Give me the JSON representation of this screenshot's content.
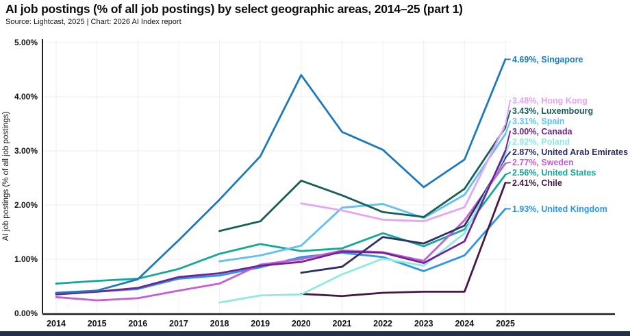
{
  "page": {
    "title": "AI job postings (% of all job postings) by select geographic areas, 2014–25 (part 1)",
    "subtitle": "Source: Lightcast, 2025 | Chart: 2026 AI Index report"
  },
  "colors": {
    "axis": "#1f1f1f",
    "grid": "#f1f1f4",
    "tick_text": "#121212",
    "footer_bar": "#22304a",
    "background": "#ffffff"
  },
  "chart_data": {
    "type": "line",
    "title": "AI job postings (% of all job postings) by select geographic areas, 2014–25 (part 1)",
    "subtitle": "Source: Lightcast, 2025 | Chart: 2026 AI Index report",
    "xlabel": "",
    "ylabel": "AI job postings (% of all job postings)",
    "units": "percent of all job postings",
    "x": [
      2014,
      2015,
      2016,
      2017,
      2018,
      2019,
      2020,
      2021,
      2022,
      2023,
      2024,
      2025
    ],
    "x_tick_labels": [
      "2014",
      "2015",
      "2016",
      "2017",
      "2018",
      "2019",
      "2020",
      "2021",
      "2022",
      "2023",
      "2024",
      "2025"
    ],
    "y_tick_labels": [
      "0.00%",
      "1.00%",
      "2.00%",
      "3.00%",
      "4.00%",
      "5.00%"
    ],
    "ylim": [
      0,
      5
    ],
    "grid": true,
    "legend_position": "right-of-line-endpoints",
    "series": [
      {
        "name": "Singapore",
        "label": "4.69%, Singapore",
        "final_value": 4.69,
        "color": "#1d79bd",
        "values": [
          0.38,
          0.42,
          0.63,
          1.35,
          2.1,
          2.9,
          4.4,
          3.35,
          3.02,
          2.33,
          2.84,
          4.69
        ]
      },
      {
        "name": "Hong Kong",
        "label": "3.48%, Hong Kong",
        "final_value": 3.48,
        "color": "#e3a6f2",
        "values": [
          null,
          null,
          null,
          null,
          null,
          null,
          2.03,
          1.9,
          1.73,
          1.7,
          1.96,
          3.48
        ]
      },
      {
        "name": "Luxembourg",
        "label": "3.43%, Luxembourg",
        "final_value": 3.43,
        "color": "#175d58",
        "values": [
          null,
          null,
          null,
          null,
          1.52,
          1.7,
          2.45,
          2.18,
          1.87,
          1.78,
          2.3,
          3.43
        ]
      },
      {
        "name": "Spain",
        "label": "3.31%, Spain",
        "final_value": 3.31,
        "color": "#5ec1ee",
        "values": [
          null,
          null,
          null,
          null,
          0.96,
          1.07,
          1.25,
          1.95,
          2.02,
          1.76,
          2.19,
          3.31
        ]
      },
      {
        "name": "Canada",
        "label": "3.00%, Canada",
        "final_value": 3.0,
        "color": "#6f2394",
        "values": [
          0.35,
          0.4,
          0.47,
          0.67,
          0.74,
          0.88,
          0.95,
          1.14,
          1.12,
          0.93,
          1.33,
          3.0
        ]
      },
      {
        "name": "Poland",
        "label": "2.92%, Poland",
        "final_value": 2.92,
        "color": "#8deae2",
        "values": [
          null,
          null,
          null,
          null,
          0.2,
          0.33,
          0.35,
          0.72,
          1.01,
          0.88,
          1.48,
          2.92
        ]
      },
      {
        "name": "United Arab Emirates",
        "label": "2.87%, United Arab Emirates",
        "final_value": 2.87,
        "color": "#2c3068",
        "values": [
          null,
          null,
          null,
          null,
          null,
          null,
          0.75,
          0.86,
          1.41,
          1.29,
          1.62,
          2.87
        ]
      },
      {
        "name": "Sweden",
        "label": "2.77%, Sweden",
        "final_value": 2.77,
        "color": "#c45ed4",
        "values": [
          0.3,
          0.24,
          0.28,
          0.42,
          0.55,
          0.9,
          1.0,
          1.16,
          1.13,
          0.97,
          1.72,
          2.77
        ]
      },
      {
        "name": "United States",
        "label": "2.56%, United States",
        "final_value": 2.56,
        "color": "#14a897",
        "values": [
          0.55,
          0.6,
          0.64,
          0.82,
          1.1,
          1.28,
          1.15,
          1.2,
          1.48,
          1.24,
          1.55,
          2.56
        ]
      },
      {
        "name": "Chile",
        "label": "2.41%, Chile",
        "final_value": 2.41,
        "color": "#451845",
        "values": [
          null,
          null,
          null,
          null,
          null,
          null,
          0.36,
          0.32,
          0.38,
          0.4,
          0.4,
          2.41
        ]
      },
      {
        "name": "United Kingdom",
        "label": "1.93%, United Kingdom",
        "final_value": 1.93,
        "color": "#2e94e8",
        "values": [
          0.36,
          0.4,
          0.45,
          0.64,
          0.7,
          0.85,
          1.04,
          1.12,
          1.04,
          0.78,
          1.07,
          1.93
        ]
      }
    ]
  }
}
